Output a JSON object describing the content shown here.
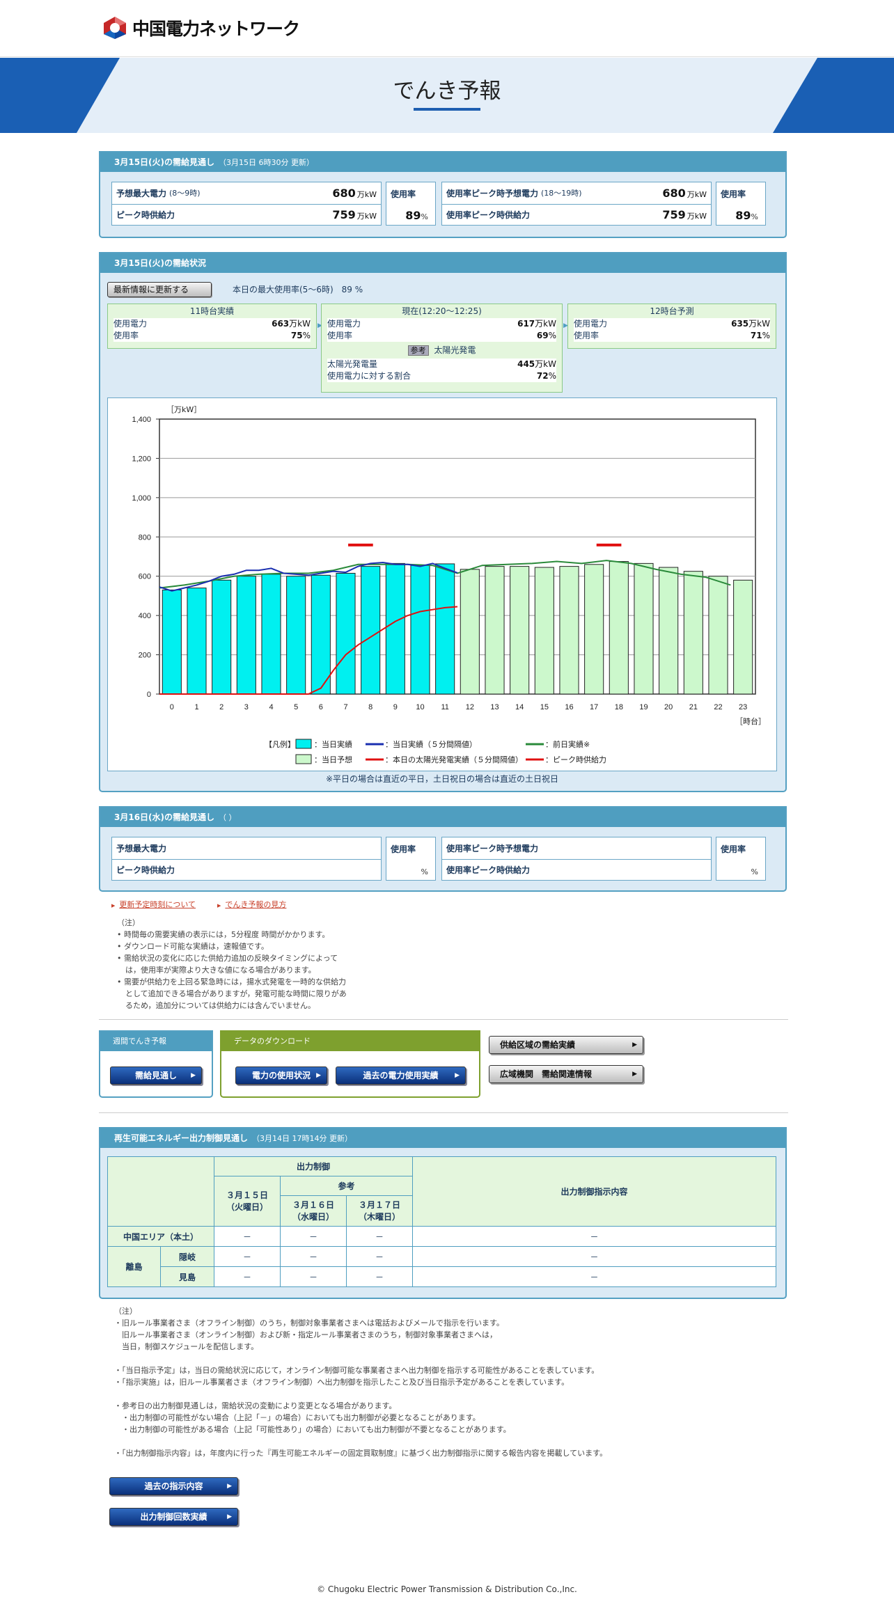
{
  "site": {
    "logo_text": "中国電力ネットワーク",
    "page_title": "でんき予報"
  },
  "forecast_today": {
    "header": "3月15日(火)の需給見通し",
    "updated": "（3月15日 6時30分 更新）",
    "peak_demand_label": "予想最大電力",
    "peak_demand_hours": "(8～9時)",
    "peak_demand_value": "680",
    "unit": "万kW",
    "peak_supply_label": "ピーク時供給力",
    "peak_supply_value": "759",
    "usage_rate_label": "使用率",
    "usage_rate_value": "89",
    "percent": "%",
    "ratepeak_demand_label": "使用率ピーク時予想電力",
    "ratepeak_demand_hours": "(18～19時)",
    "ratepeak_demand_value": "680",
    "ratepeak_supply_label": "使用率ピーク時供給力",
    "ratepeak_supply_value": "759",
    "ratepeak_usage_label": "使用率",
    "ratepeak_usage_value": "89"
  },
  "status_today": {
    "header": "3月15日(火)の需給状況",
    "refresh_button": "最新情報に更新する",
    "max_rate_text": "本日の最大使用率(5～6時)　89 %",
    "actual": {
      "title": "11時台実績",
      "power_label": "使用電力",
      "power_value": "663",
      "rate_label": "使用率",
      "rate_value": "75"
    },
    "current": {
      "title": "現在(12:20～12:25)",
      "power_label": "使用電力",
      "power_value": "617",
      "rate_label": "使用率",
      "rate_value": "69",
      "ref_badge": "参考",
      "solar_title": "太陽光発電",
      "solar_label": "太陽光発電量",
      "solar_value": "445",
      "solar_ratio_label": "使用電力に対する割合",
      "solar_ratio_value": "72"
    },
    "next": {
      "title": "12時台予測",
      "power_label": "使用電力",
      "power_value": "635",
      "rate_label": "使用率",
      "rate_value": "71"
    },
    "unit": "万kW",
    "percent": "%"
  },
  "chart_data": {
    "type": "bar",
    "ylabel": "［万kW］",
    "xlabel": "［時台］",
    "ylim": [
      0,
      1400
    ],
    "yticks": [
      "0",
      "200",
      "400",
      "600",
      "800",
      "1,000",
      "1,200",
      "1,400"
    ],
    "categories": [
      "0",
      "1",
      "2",
      "3",
      "4",
      "5",
      "6",
      "7",
      "8",
      "9",
      "10",
      "11",
      "12",
      "13",
      "14",
      "15",
      "16",
      "17",
      "18",
      "19",
      "20",
      "21",
      "22",
      "23"
    ],
    "series": [
      {
        "name": "当日実績",
        "color": "#00f0f0",
        "values": [
          530,
          540,
          580,
          600,
          610,
          600,
          605,
          615,
          650,
          665,
          655,
          663,
          null,
          null,
          null,
          null,
          null,
          null,
          null,
          null,
          null,
          null,
          null,
          null
        ]
      },
      {
        "name": "当日予想",
        "color": "#ccf8cc",
        "values": [
          null,
          null,
          null,
          null,
          null,
          null,
          null,
          null,
          null,
          null,
          null,
          null,
          635,
          650,
          650,
          645,
          650,
          660,
          675,
          665,
          645,
          625,
          600,
          580
        ]
      },
      {
        "name": "当日実績（５分間隔値）",
        "color": "#1a2fb0",
        "x": [
          0,
          0.5,
          1,
          1.5,
          2,
          2.5,
          3,
          3.5,
          4,
          4.5,
          5,
          5.5,
          6,
          6.5,
          7,
          7.5,
          8,
          8.5,
          9,
          9.5,
          10,
          10.5,
          11,
          11.5,
          12
        ],
        "values": [
          545,
          525,
          540,
          555,
          575,
          600,
          610,
          630,
          630,
          640,
          615,
          610,
          605,
          615,
          625,
          620,
          650,
          665,
          670,
          660,
          660,
          650,
          665,
          640,
          617
        ]
      },
      {
        "name": "本日の太陽光発電実績（５分間隔値）",
        "color": "#e01010",
        "x": [
          0,
          1,
          2,
          3,
          4,
          5,
          6,
          6.5,
          7,
          7.5,
          8,
          8.5,
          9,
          9.5,
          10,
          10.5,
          11,
          11.5,
          12
        ],
        "values": [
          0,
          0,
          0,
          0,
          0,
          0,
          0,
          30,
          120,
          200,
          250,
          290,
          330,
          370,
          400,
          420,
          430,
          440,
          445
        ]
      },
      {
        "name": "前日実績※",
        "color": "#2a8a3a",
        "x": [
          0,
          1,
          2,
          3,
          4,
          5,
          6,
          7,
          8,
          9,
          10,
          11,
          12,
          13,
          14,
          15,
          16,
          17,
          18,
          19,
          20,
          21,
          22,
          23
        ],
        "values": [
          540,
          555,
          575,
          600,
          610,
          615,
          615,
          630,
          660,
          660,
          660,
          655,
          615,
          655,
          660,
          665,
          675,
          665,
          680,
          665,
          635,
          610,
          595,
          555
        ]
      },
      {
        "name": "ピーク時供給力",
        "color": "#e01010",
        "segments": [
          {
            "x0": 7.6,
            "x1": 8.6,
            "value": 759
          },
          {
            "x0": 17.6,
            "x1": 18.6,
            "value": 759
          }
        ]
      }
    ],
    "legend_prefix": "【凡例】",
    "footnote": "※平日の場合は直近の平日，土日祝日の場合は直近の土日祝日"
  },
  "forecast_tomorrow": {
    "header": "3月16日(水)の需給見通し",
    "updated": "（ ）",
    "peak_demand_label": "予想最大電力",
    "peak_supply_label": "ピーク時供給力",
    "usage_rate_label": "使用率",
    "percent": "%",
    "ratepeak_demand_label": "使用率ピーク時予想電力",
    "ratepeak_supply_label": "使用率ピーク時供給力",
    "ratepeak_usage_label": "使用率"
  },
  "links": {
    "update_times": "更新予定時刻について",
    "how_to_read": "でんき予報の見方"
  },
  "notes1": {
    "title": "（注）",
    "items": [
      "時間毎の需要実績の表示には，5分程度 時間がかかります。",
      "ダウンロード可能な実績は，速報値です。",
      "需給状況の変化に応じた供給力追加の反映タイミングによって",
      "は，使用率が実際より大きな値になる場合があります。",
      "需要が供給力を上回る緊急時には，揚水式発電を一時的な供給力",
      "として追加できる場合がありますが，発電可能な時間に限りがあ",
      "るため，追加分については供給力には含んでいません。"
    ]
  },
  "weekly": {
    "header": "週間でんき予報",
    "button": "需給見通し"
  },
  "download": {
    "header": "データのダウンロード",
    "button1": "電力の使用状況",
    "button2": "過去の電力使用実績"
  },
  "side_buttons": {
    "button1": "供給区域の需給実績",
    "button2": "広域機関　需給関連情報"
  },
  "renewable": {
    "header": "再生可能エネルギー出力制御見通し",
    "updated": "（3月14日 17時14分 更新）",
    "col_control": "出力制御",
    "col_ref": "参考",
    "col_d1": "３月１５日\n（火曜日）",
    "col_d2": "３月１６日\n（水曜日）",
    "col_d3": "３月１７日\n（木曜日）",
    "col_content": "出力制御指示内容",
    "row_main": "中国エリア（本土）",
    "row_islands": "離島",
    "row_oki": "隠岐",
    "row_mishima": "見島",
    "dash": "－"
  },
  "notes2": {
    "lines": [
      "（注）",
      "・旧ルール事業者さま（オフライン制御）のうち，制御対象事業者さまへは電話およびメールで指示を行います。",
      "　旧ルール事業者さま（オンライン制御）および新・指定ルール事業者さまのうち，制御対象事業者さまへは，",
      "　当日，制御スケジュールを配信します。",
      "",
      "・「当日指示予定」は，当日の需給状況に応じて，オンライン制御可能な事業者さまへ出力制御を指示する可能性があることを表しています。",
      "・「指示実施」は，旧ルール事業者さま（オフライン制御）へ出力制御を指示したこと及び当日指示予定があることを表しています。",
      "",
      "・参考日の出力制御見通しは，需給状況の変動により変更となる場合があります。",
      "　・出力制御の可能性がない場合（上記「－」の場合）においても出力制御が必要となることがあります。",
      "　・出力制御の可能性がある場合（上記「可能性あり」の場合）においても出力制御が不要となることがあります。",
      "",
      "・「出力制御指示内容」は，年度内に行った『再生可能エネルギーの固定買取制度』に基づく出力制御指示に関する報告内容を掲載しています。"
    ],
    "button1": "過去の指示内容",
    "button2": "出力制御回数実績"
  },
  "footer": "© Chugoku Electric Power Transmission & Distribution Co.,Inc."
}
